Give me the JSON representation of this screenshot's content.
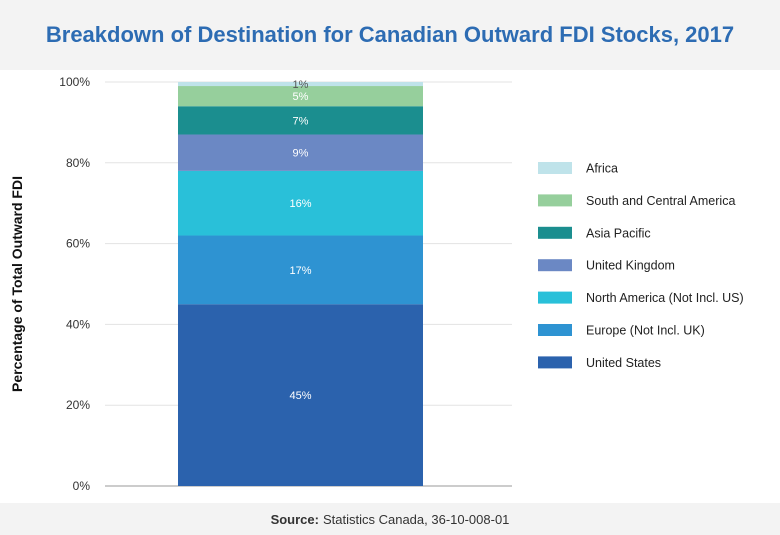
{
  "header": {
    "title": "Breakdown of Destination for Canadian Outward FDI Stocks, 2017"
  },
  "footer": {
    "source_label": "Source:",
    "source_text": "Statistics Canada, 36-10-008-01"
  },
  "chart_data": {
    "type": "bar",
    "stacked": true,
    "title": "Breakdown of Destination for Canadian Outward FDI Stocks, 2017",
    "xlabel": "",
    "ylabel": "Percentage of Total Outward FDI",
    "ylim": [
      0,
      100
    ],
    "yticks": [
      "0%",
      "20%",
      "40%",
      "60%",
      "80%",
      "100%"
    ],
    "grid": true,
    "legend_position": "right",
    "series": [
      {
        "name": "United States",
        "value": 45,
        "label": "45%",
        "color": "#2b62ad"
      },
      {
        "name": "Europe (Not Incl. UK)",
        "value": 17,
        "label": "17%",
        "color": "#2e93d2"
      },
      {
        "name": "North America (Not Incl. US)",
        "value": 16,
        "label": "16%",
        "color": "#29c0d9"
      },
      {
        "name": "United Kingdom",
        "value": 9,
        "label": "9%",
        "color": "#6b88c4"
      },
      {
        "name": "Asia Pacific",
        "value": 7,
        "label": "7%",
        "color": "#1b8e8f"
      },
      {
        "name": "South and Central America",
        "value": 5,
        "label": "5%",
        "color": "#96cf9c"
      },
      {
        "name": "Africa",
        "value": 1,
        "label": "1%",
        "color": "#bfe3ea"
      }
    ]
  }
}
